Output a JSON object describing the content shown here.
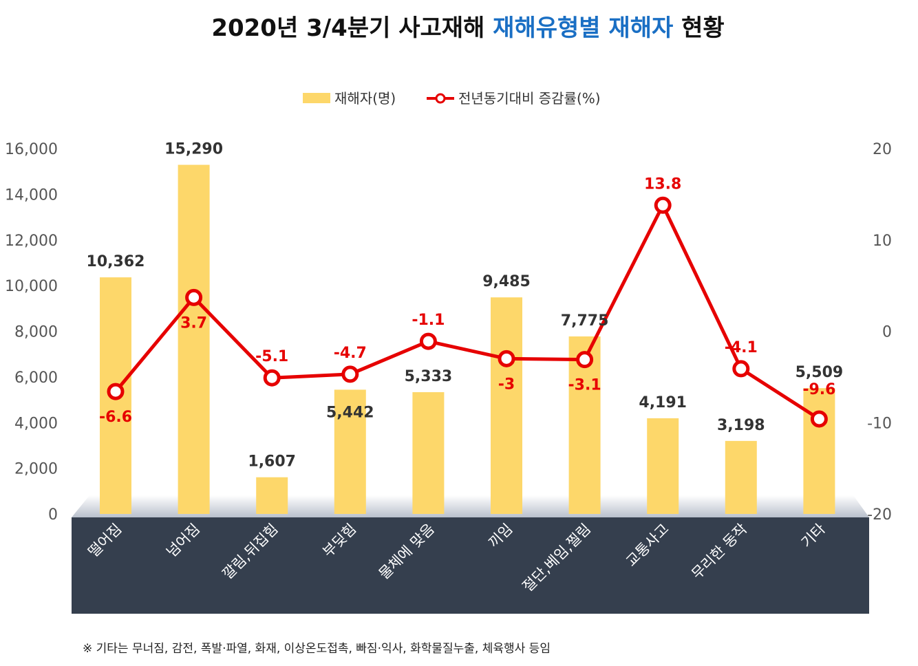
{
  "chart_data": {
    "type": "bar",
    "title_parts": [
      "2020년 3/4분기 사고재해 ",
      "재해유형별 재해자",
      " 현황"
    ],
    "categories": [
      "떨어짐",
      "넘어짐",
      "깔림,뒤집힘",
      "부딪힘",
      "물체에 맞음",
      "끼임",
      "절단,베임,찔림",
      "교통사고",
      "무리한 동작",
      "기타"
    ],
    "series": [
      {
        "name": "재해자(명)",
        "type": "bar",
        "axis": "left",
        "color": "#fdd76a",
        "values": [
          10362,
          15290,
          1607,
          5442,
          5333,
          9485,
          7775,
          4191,
          3198,
          5509
        ],
        "labels": [
          "10,362",
          "15,290",
          "1,607",
          "5,442",
          "5,333",
          "9,485",
          "7,775",
          "4,191",
          "3,198",
          "5,509"
        ]
      },
      {
        "name": "전년동기대비 증감률(%)",
        "type": "line",
        "axis": "right",
        "color": "#e60000",
        "values": [
          -6.6,
          3.7,
          -5.1,
          -4.7,
          -1.1,
          -3,
          -3.1,
          13.8,
          -4.1,
          -9.6
        ],
        "labels": [
          "-6.6",
          "3.7",
          "-5.1",
          "-4.7",
          "-1.1",
          "-3",
          "-3.1",
          "13.8",
          "-4.1",
          "-9.6"
        ]
      }
    ],
    "y_left": {
      "range": [
        0,
        16000
      ],
      "ticks": [
        "0",
        "2,000",
        "4,000",
        "6,000",
        "8,000",
        "10,000",
        "12,000",
        "14,000",
        "16,000"
      ]
    },
    "y_right": {
      "range": [
        -20,
        20
      ],
      "ticks": [
        "-20",
        "-10",
        "0",
        "10",
        "20"
      ]
    },
    "legend_position": "top",
    "grid": false,
    "footnote": "※ 기타는 무너짐, 감전, 폭발·파열, 화재, 이상온도접촉, 빠짐·익사, 화학물질누출, 체육행사 등임"
  }
}
